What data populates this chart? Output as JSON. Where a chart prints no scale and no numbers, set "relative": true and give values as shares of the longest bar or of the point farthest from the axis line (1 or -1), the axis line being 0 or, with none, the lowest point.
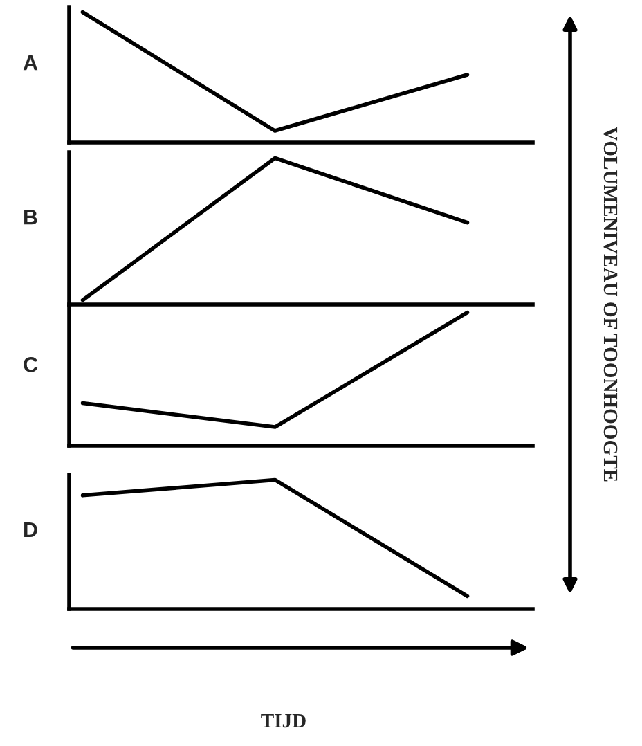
{
  "chart_data": [
    {
      "type": "line",
      "title": "A",
      "relative": true,
      "categories": [
        null,
        null,
        null
      ],
      "ylabel": "VOLUMENIVEAU OF TOONHOOGTE",
      "series": [
        {
          "color": "#000000",
          "values": [
            1,
            0.09,
            0.52
          ]
        }
      ]
    },
    {
      "type": "line",
      "title": "B",
      "relative": true,
      "categories": [
        null,
        null,
        null
      ],
      "series": [
        {
          "color": "#000000",
          "values": [
            0.03,
            1,
            0.56
          ]
        }
      ]
    },
    {
      "type": "line",
      "title": "C",
      "relative": true,
      "categories": [
        null,
        null,
        null
      ],
      "series": [
        {
          "color": "#000000",
          "values": [
            0.32,
            0.14,
            1
          ]
        }
      ]
    },
    {
      "type": "line",
      "title": "D",
      "relative": true,
      "categories": [
        null,
        null,
        null
      ],
      "xlabel": "TIJD",
      "series": [
        {
          "color": "#000000",
          "values": [
            0.88,
            1,
            0.1
          ]
        }
      ]
    }
  ]
}
